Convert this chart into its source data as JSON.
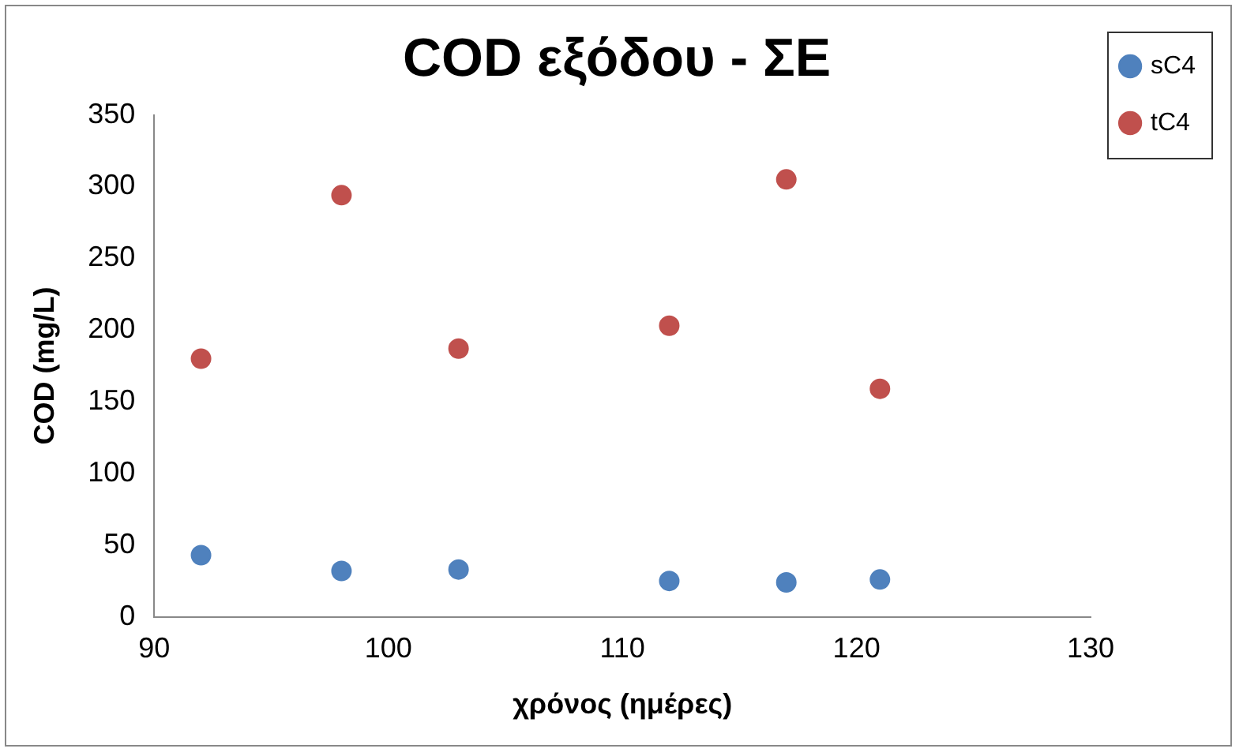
{
  "chart_data": {
    "type": "scatter",
    "title": "COD εξόδου - ΣΕ",
    "xlabel": "χρόνος (ημέρες)",
    "ylabel": "COD (mg/L)",
    "x": [
      92,
      98,
      103,
      112,
      117,
      121
    ],
    "series": [
      {
        "name": "sC4",
        "color": "#4f81bd",
        "values": [
          43,
          32,
          33,
          25,
          24,
          26
        ]
      },
      {
        "name": "tC4",
        "color": "#c0504d",
        "values": [
          180,
          294,
          187,
          203,
          305,
          159
        ]
      }
    ],
    "xlim": [
      90,
      130
    ],
    "xticks": [
      90,
      100,
      110,
      120,
      130
    ],
    "ylim": [
      0,
      350
    ],
    "yticks": [
      0,
      50,
      100,
      150,
      200,
      250,
      300,
      350
    ],
    "grid": false,
    "legend": "right",
    "marker": "circle"
  }
}
